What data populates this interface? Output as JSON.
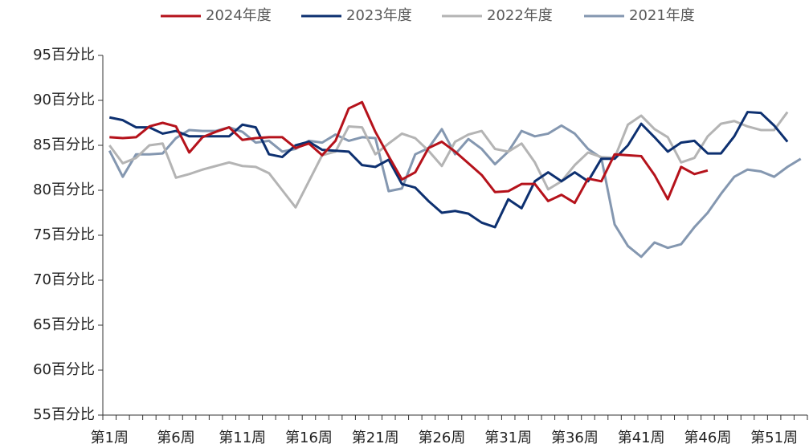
{
  "chart_data": {
    "type": "line",
    "categories": [
      "第1周",
      null,
      null,
      null,
      null,
      "第6周",
      null,
      null,
      null,
      null,
      "第11周",
      null,
      null,
      null,
      null,
      "第16周",
      null,
      null,
      null,
      null,
      "第21周",
      null,
      null,
      null,
      null,
      "第26周",
      null,
      null,
      null,
      null,
      "第31周",
      null,
      null,
      null,
      null,
      "第36周",
      null,
      null,
      null,
      null,
      "第41周",
      null,
      null,
      null,
      null,
      "第46周",
      null,
      null,
      null,
      null,
      "第51周",
      null,
      null
    ],
    "series": [
      {
        "name": "2024年度",
        "color": "#b5121b",
        "values": [
          85.9,
          85.8,
          85.9,
          87.1,
          87.5,
          87.1,
          84.2,
          85.9,
          86.5,
          87.0,
          85.6,
          85.8,
          85.9,
          85.9,
          84.7,
          85.2,
          83.9,
          85.5,
          89.1,
          89.8,
          86.5,
          83.8,
          81.2,
          82.0,
          84.7,
          85.4,
          84.3,
          83.0,
          81.7,
          79.8,
          79.9,
          80.7,
          80.7,
          78.8,
          79.5,
          78.6,
          81.3,
          81.0,
          84.0,
          83.9,
          83.8,
          81.7,
          79.0,
          82.6,
          81.8,
          82.2,
          null,
          null,
          null,
          null,
          null,
          null,
          null
        ]
      },
      {
        "name": "2023年度",
        "color": "#0d3070",
        "values": [
          88.1,
          87.8,
          87.0,
          87.0,
          86.3,
          86.6,
          86.0,
          86.0,
          86.0,
          86.0,
          87.3,
          87.0,
          84.0,
          83.7,
          85.0,
          85.4,
          84.5,
          84.4,
          84.3,
          82.8,
          82.6,
          83.4,
          80.7,
          80.3,
          78.8,
          77.5,
          77.7,
          77.4,
          76.4,
          75.9,
          79.0,
          78.0,
          81.0,
          82.0,
          81.0,
          82.0,
          81.0,
          83.5,
          83.5,
          85.0,
          87.4,
          85.9,
          84.3,
          85.3,
          85.5,
          84.1,
          84.1,
          86.0,
          88.7,
          88.6,
          87.2,
          85.4,
          null
        ]
      },
      {
        "name": "2022年度",
        "color": "#b4b4b4",
        "values": [
          85.0,
          83.0,
          83.6,
          85.0,
          85.2,
          81.4,
          81.8,
          82.3,
          82.7,
          83.1,
          82.7,
          82.6,
          81.9,
          80.0,
          78.1,
          81.0,
          83.9,
          84.3,
          87.1,
          87.0,
          84.0,
          85.2,
          86.3,
          85.8,
          84.4,
          82.7,
          85.4,
          86.2,
          86.6,
          84.6,
          84.3,
          85.2,
          83.1,
          80.1,
          81.0,
          82.8,
          84.2,
          83.7,
          83.6,
          87.3,
          88.3,
          86.8,
          85.9,
          83.1,
          83.6,
          86.0,
          87.4,
          87.7,
          87.1,
          86.7,
          86.7,
          88.7,
          null
        ]
      },
      {
        "name": "2021年度",
        "color": "#8497b0",
        "values": [
          84.4,
          81.5,
          84.0,
          84.0,
          84.1,
          85.8,
          86.7,
          86.6,
          86.6,
          87.0,
          86.5,
          85.3,
          85.5,
          84.3,
          84.6,
          85.5,
          85.3,
          86.2,
          85.5,
          85.9,
          85.8,
          79.9,
          80.2,
          84.0,
          84.7,
          86.8,
          84.0,
          85.7,
          84.6,
          82.9,
          84.3,
          86.6,
          86.0,
          86.3,
          87.2,
          86.3,
          84.6,
          83.6,
          76.2,
          73.8,
          72.6,
          74.2,
          73.6,
          74.0,
          75.9,
          77.5,
          79.6,
          81.5,
          82.3,
          82.1,
          81.5,
          82.6,
          83.5
        ]
      }
    ],
    "ylim": [
      55,
      95
    ],
    "yticks": [
      {
        "value": 55,
        "label": "55百分比"
      },
      {
        "value": 60,
        "label": "60百分比"
      },
      {
        "value": 65,
        "label": "65百分比"
      },
      {
        "value": 70,
        "label": "70百分比"
      },
      {
        "value": 75,
        "label": "75百分比"
      },
      {
        "value": 80,
        "label": "80百分比"
      },
      {
        "value": 85,
        "label": "85百分比"
      },
      {
        "value": 90,
        "label": "90百分比"
      },
      {
        "value": 95,
        "label": "95百分比"
      }
    ],
    "grid": false,
    "legend": "top"
  }
}
